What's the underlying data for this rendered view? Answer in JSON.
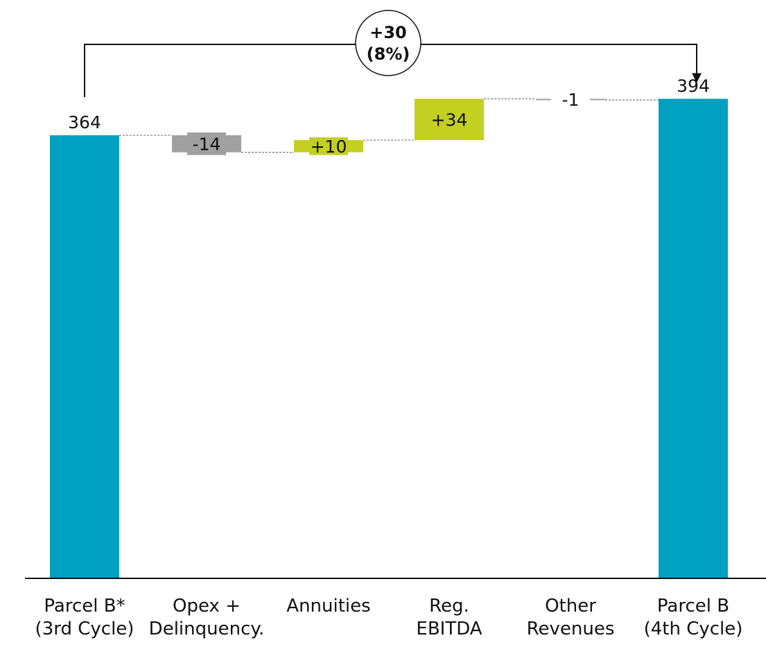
{
  "chart_data": {
    "type": "bar",
    "subtype": "waterfall",
    "categories": [
      "Parcel B*\n(3rd Cycle)",
      "Opex +\nDelinquency.",
      "Annuities",
      "Reg.\nEBITDA",
      "Other\nRevenues",
      "Parcel B\n(4th Cycle)"
    ],
    "steps": [
      {
        "category": "Parcel B*\n(3rd Cycle)",
        "kind": "total",
        "value": 364,
        "label": "364"
      },
      {
        "category": "Opex +\nDelinquency.",
        "kind": "delta",
        "value": -14,
        "label": "-14"
      },
      {
        "category": "Annuities",
        "kind": "delta",
        "value": 10,
        "label": "+10"
      },
      {
        "category": "Reg.\nEBITDA",
        "kind": "delta",
        "value": 34,
        "label": "+34"
      },
      {
        "category": "Other\nRevenues",
        "kind": "delta",
        "value": -1,
        "label": "-1"
      },
      {
        "category": "Parcel B\n(4th Cycle)",
        "kind": "total",
        "value": 394,
        "label": "394"
      }
    ],
    "change_annotation": {
      "line1": "+30",
      "line2": "(8%)"
    },
    "ylim": [
      0,
      394
    ],
    "grid": false,
    "colors": {
      "total": "#00a0c1",
      "decrease": "#a0a0a0",
      "increase": "#c3cf21"
    }
  }
}
